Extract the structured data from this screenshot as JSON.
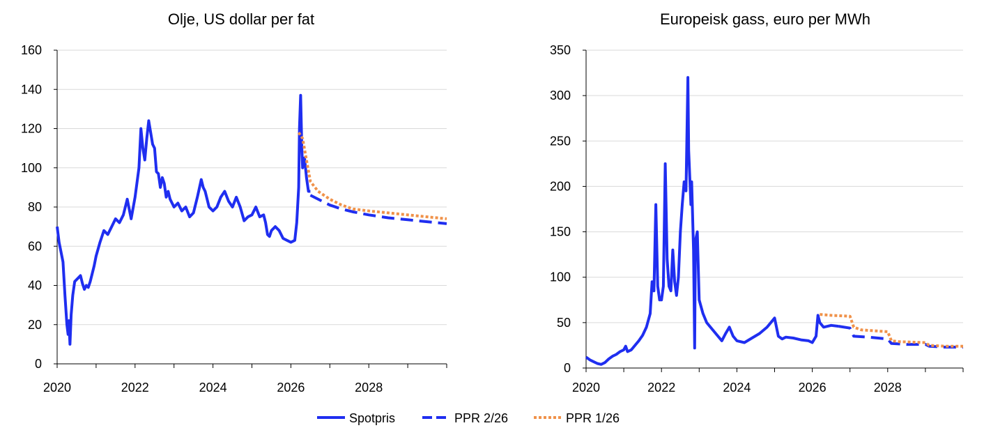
{
  "chart_data": [
    {
      "type": "line",
      "title": "Olje, US dollar per fat",
      "xlabel": "",
      "ylabel": "",
      "xlim": [
        2020,
        2030
      ],
      "ylim": [
        0,
        160
      ],
      "xticks": [
        "2020",
        "2022",
        "2024",
        "2026",
        "2028"
      ],
      "yticks": [
        "0",
        "20",
        "40",
        "60",
        "80",
        "100",
        "120",
        "140",
        "160"
      ],
      "grid": true,
      "series": [
        {
          "name": "Spotpris",
          "color": "#1f2ef0",
          "style": "solid",
          "x": [
            2020.0,
            2020.05,
            2020.1,
            2020.15,
            2020.2,
            2020.25,
            2020.28,
            2020.3,
            2020.33,
            2020.36,
            2020.4,
            2020.45,
            2020.5,
            2020.55,
            2020.6,
            2020.65,
            2020.7,
            2020.75,
            2020.8,
            2020.85,
            2020.9,
            2020.95,
            2021.0,
            2021.1,
            2021.2,
            2021.3,
            2021.4,
            2021.5,
            2021.6,
            2021.7,
            2021.8,
            2021.9,
            2022.0,
            2022.1,
            2022.15,
            2022.2,
            2022.25,
            2022.3,
            2022.35,
            2022.4,
            2022.45,
            2022.5,
            2022.55,
            2022.6,
            2022.65,
            2022.7,
            2022.75,
            2022.8,
            2022.85,
            2022.9,
            2022.95,
            2023.0,
            2023.1,
            2023.2,
            2023.3,
            2023.4,
            2023.5,
            2023.6,
            2023.7,
            2023.75,
            2023.8,
            2023.9,
            2024.0,
            2024.1,
            2024.2,
            2024.3,
            2024.4,
            2024.5,
            2024.6,
            2024.7,
            2024.8,
            2024.9,
            2025.0,
            2025.1,
            2025.2,
            2025.3,
            2025.35,
            2025.4,
            2025.45,
            2025.5,
            2025.6,
            2025.7,
            2025.8,
            2025.9,
            2026.0,
            2026.1,
            2026.15,
            2026.2,
            2026.22,
            2026.25,
            2026.28,
            2026.3,
            2026.35,
            2026.4,
            2026.45,
            2026.5
          ],
          "y": [
            70,
            62,
            57,
            52,
            35,
            20,
            15,
            22,
            10,
            25,
            35,
            42,
            43,
            44,
            45,
            41,
            38,
            40,
            39,
            42,
            46,
            50,
            55,
            62,
            68,
            66,
            70,
            74,
            72,
            76,
            84,
            74,
            85,
            100,
            120,
            110,
            104,
            115,
            124,
            118,
            112,
            110,
            98,
            97,
            90,
            95,
            92,
            85,
            88,
            84,
            82,
            80,
            82,
            78,
            80,
            75,
            77,
            85,
            94,
            90,
            88,
            80,
            78,
            80,
            85,
            88,
            83,
            80,
            85,
            80,
            73,
            75,
            76,
            80,
            75,
            76,
            72,
            66,
            65,
            68,
            70,
            68,
            64,
            63,
            62,
            63,
            72,
            90,
            120,
            137,
            110,
            100,
            105,
            95,
            88,
            88
          ]
        },
        {
          "name": "PPR 2/26",
          "color": "#1f2ef0",
          "style": "dashed",
          "x": [
            2026.5,
            2026.8,
            2027.0,
            2027.3,
            2027.6,
            2028.0,
            2028.5,
            2029.0,
            2029.5,
            2030.0
          ],
          "y": [
            86,
            83,
            81,
            79,
            77.5,
            76,
            74.5,
            73.5,
            72.5,
            71.5
          ]
        },
        {
          "name": "PPR 1/26",
          "color": "#f0924a",
          "style": "dotted",
          "x": [
            2026.2,
            2026.3,
            2026.4,
            2026.5,
            2026.7,
            2027.0,
            2027.3,
            2027.6,
            2028.0,
            2028.5,
            2029.0,
            2029.5,
            2030.0
          ],
          "y": [
            118,
            115,
            104,
            93,
            88,
            84,
            81,
            79,
            78,
            77,
            76,
            75,
            74
          ]
        }
      ]
    },
    {
      "type": "line",
      "title": "Europeisk gass, euro per MWh",
      "xlabel": "",
      "ylabel": "",
      "xlim": [
        2020,
        2030
      ],
      "ylim": [
        0,
        350
      ],
      "xticks": [
        "2020",
        "2022",
        "2024",
        "2026",
        "2028"
      ],
      "yticks": [
        "0",
        "50",
        "100",
        "150",
        "200",
        "250",
        "300",
        "350"
      ],
      "grid": true,
      "series": [
        {
          "name": "Spotpris",
          "color": "#1f2ef0",
          "style": "solid",
          "x": [
            2020.0,
            2020.1,
            2020.2,
            2020.3,
            2020.4,
            2020.5,
            2020.6,
            2020.7,
            2020.8,
            2020.9,
            2021.0,
            2021.05,
            2021.1,
            2021.2,
            2021.3,
            2021.4,
            2021.5,
            2021.6,
            2021.7,
            2021.75,
            2021.8,
            2021.85,
            2021.9,
            2021.95,
            2022.0,
            2022.05,
            2022.1,
            2022.15,
            2022.2,
            2022.25,
            2022.3,
            2022.35,
            2022.4,
            2022.45,
            2022.5,
            2022.55,
            2022.6,
            2022.65,
            2022.7,
            2022.72,
            2022.75,
            2022.78,
            2022.8,
            2022.85,
            2022.88,
            2022.9,
            2022.95,
            2023.0,
            2023.1,
            2023.2,
            2023.3,
            2023.4,
            2023.5,
            2023.6,
            2023.7,
            2023.8,
            2023.9,
            2024.0,
            2024.2,
            2024.4,
            2024.6,
            2024.8,
            2025.0,
            2025.1,
            2025.2,
            2025.3,
            2025.5,
            2025.7,
            2025.9,
            2026.0,
            2026.1,
            2026.15,
            2026.2,
            2026.3,
            2026.5,
            2026.7
          ],
          "y": [
            12,
            9,
            7,
            5,
            4,
            6,
            10,
            13,
            15,
            18,
            20,
            24,
            18,
            20,
            25,
            30,
            36,
            45,
            60,
            95,
            85,
            180,
            90,
            75,
            75,
            90,
            225,
            120,
            90,
            85,
            130,
            95,
            80,
            100,
            150,
            180,
            205,
            195,
            320,
            240,
            210,
            180,
            205,
            130,
            22,
            140,
            150,
            75,
            60,
            50,
            45,
            40,
            35,
            30,
            38,
            45,
            35,
            30,
            28,
            33,
            38,
            45,
            55,
            35,
            32,
            34,
            33,
            31,
            30,
            28,
            35,
            58,
            50,
            45,
            47,
            46
          ]
        },
        {
          "name": "PPR 2/26",
          "color": "#1f2ef0",
          "style": "dashed",
          "x": [
            2026.7,
            2027.0,
            2027.1,
            2027.5,
            2028.0,
            2028.1,
            2028.5,
            2029.0,
            2029.1,
            2029.5,
            2030.0
          ],
          "y": [
            46,
            44,
            35,
            34,
            32,
            27,
            26,
            26,
            24,
            23,
            23
          ]
        },
        {
          "name": "PPR 1/26",
          "color": "#f0924a",
          "style": "dotted",
          "x": [
            2026.2,
            2026.5,
            2027.0,
            2027.1,
            2027.3,
            2028.0,
            2028.1,
            2028.3,
            2029.0,
            2029.1,
            2029.5,
            2030.0
          ],
          "y": [
            59,
            58,
            57,
            45,
            42,
            40,
            30,
            29,
            28,
            25,
            24,
            24
          ]
        }
      ]
    }
  ],
  "legend": [
    {
      "label": "Spotpris",
      "color": "#1f2ef0",
      "style": "solid"
    },
    {
      "label": "PPR 2/26",
      "color": "#1f2ef0",
      "style": "dashed"
    },
    {
      "label": "PPR 1/26",
      "color": "#f0924a",
      "style": "dotted"
    }
  ]
}
